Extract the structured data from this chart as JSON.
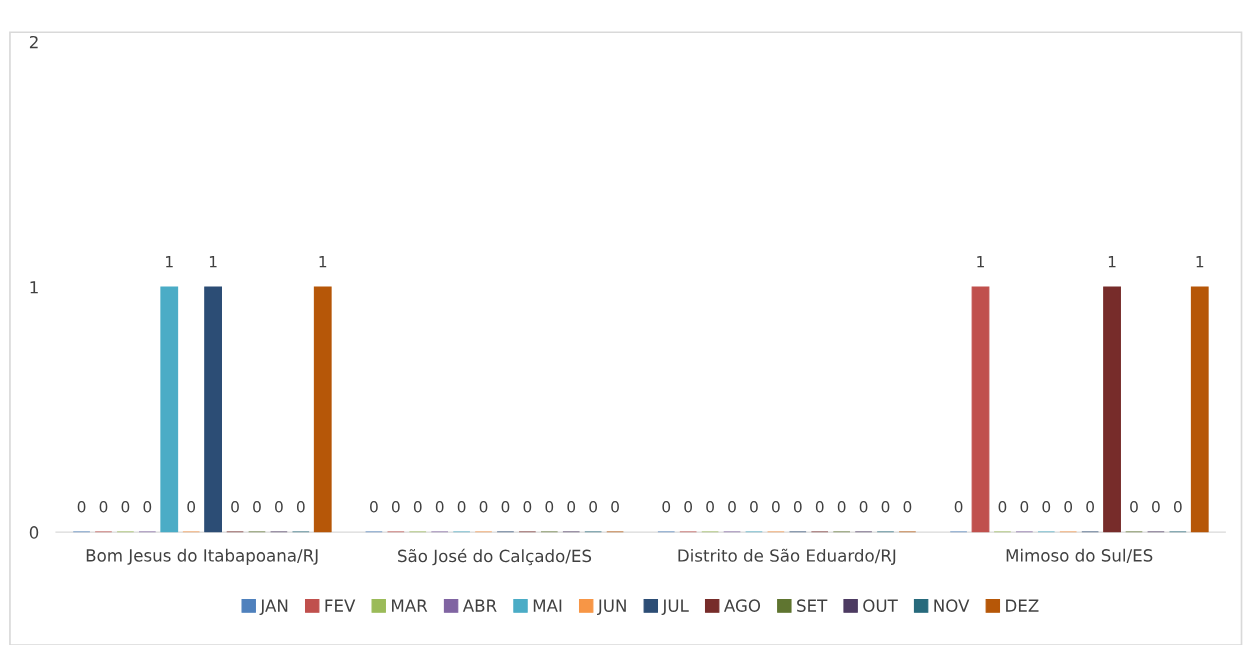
{
  "chart_data": {
    "type": "bar",
    "categories": [
      "Bom Jesus do Itabapoana/RJ",
      "São José do Calçado/ES",
      "Distrito de São Eduardo/RJ",
      "Mimoso do Sul/ES"
    ],
    "series": [
      {
        "name": "JAN",
        "color": "#4f81bd",
        "values": [
          0,
          0,
          0,
          0
        ]
      },
      {
        "name": "FEV",
        "color": "#c0504d",
        "values": [
          0,
          0,
          0,
          1
        ]
      },
      {
        "name": "MAR",
        "color": "#9bbb59",
        "values": [
          0,
          0,
          0,
          0
        ]
      },
      {
        "name": "ABR",
        "color": "#8064a2",
        "values": [
          0,
          0,
          0,
          0
        ]
      },
      {
        "name": "MAI",
        "color": "#4bacc6",
        "values": [
          1,
          0,
          0,
          0
        ]
      },
      {
        "name": "JUN",
        "color": "#f79646",
        "values": [
          0,
          0,
          0,
          0
        ]
      },
      {
        "name": "JUL",
        "color": "#2c4d75",
        "values": [
          1,
          0,
          0,
          0
        ]
      },
      {
        "name": "AGO",
        "color": "#772c2a",
        "values": [
          0,
          0,
          0,
          1
        ]
      },
      {
        "name": "SET",
        "color": "#5f7530",
        "values": [
          0,
          0,
          0,
          0
        ]
      },
      {
        "name": "OUT",
        "color": "#4d3b62",
        "values": [
          0,
          0,
          0,
          0
        ]
      },
      {
        "name": "NOV",
        "color": "#276a7c",
        "values": [
          0,
          0,
          0,
          0
        ]
      },
      {
        "name": "DEZ",
        "color": "#b65708",
        "values": [
          1,
          0,
          0,
          1
        ]
      }
    ],
    "ylim": [
      0,
      2
    ],
    "yticks": [
      0,
      1,
      2
    ],
    "grid": false,
    "legend": "bottom",
    "data_labels": true
  }
}
